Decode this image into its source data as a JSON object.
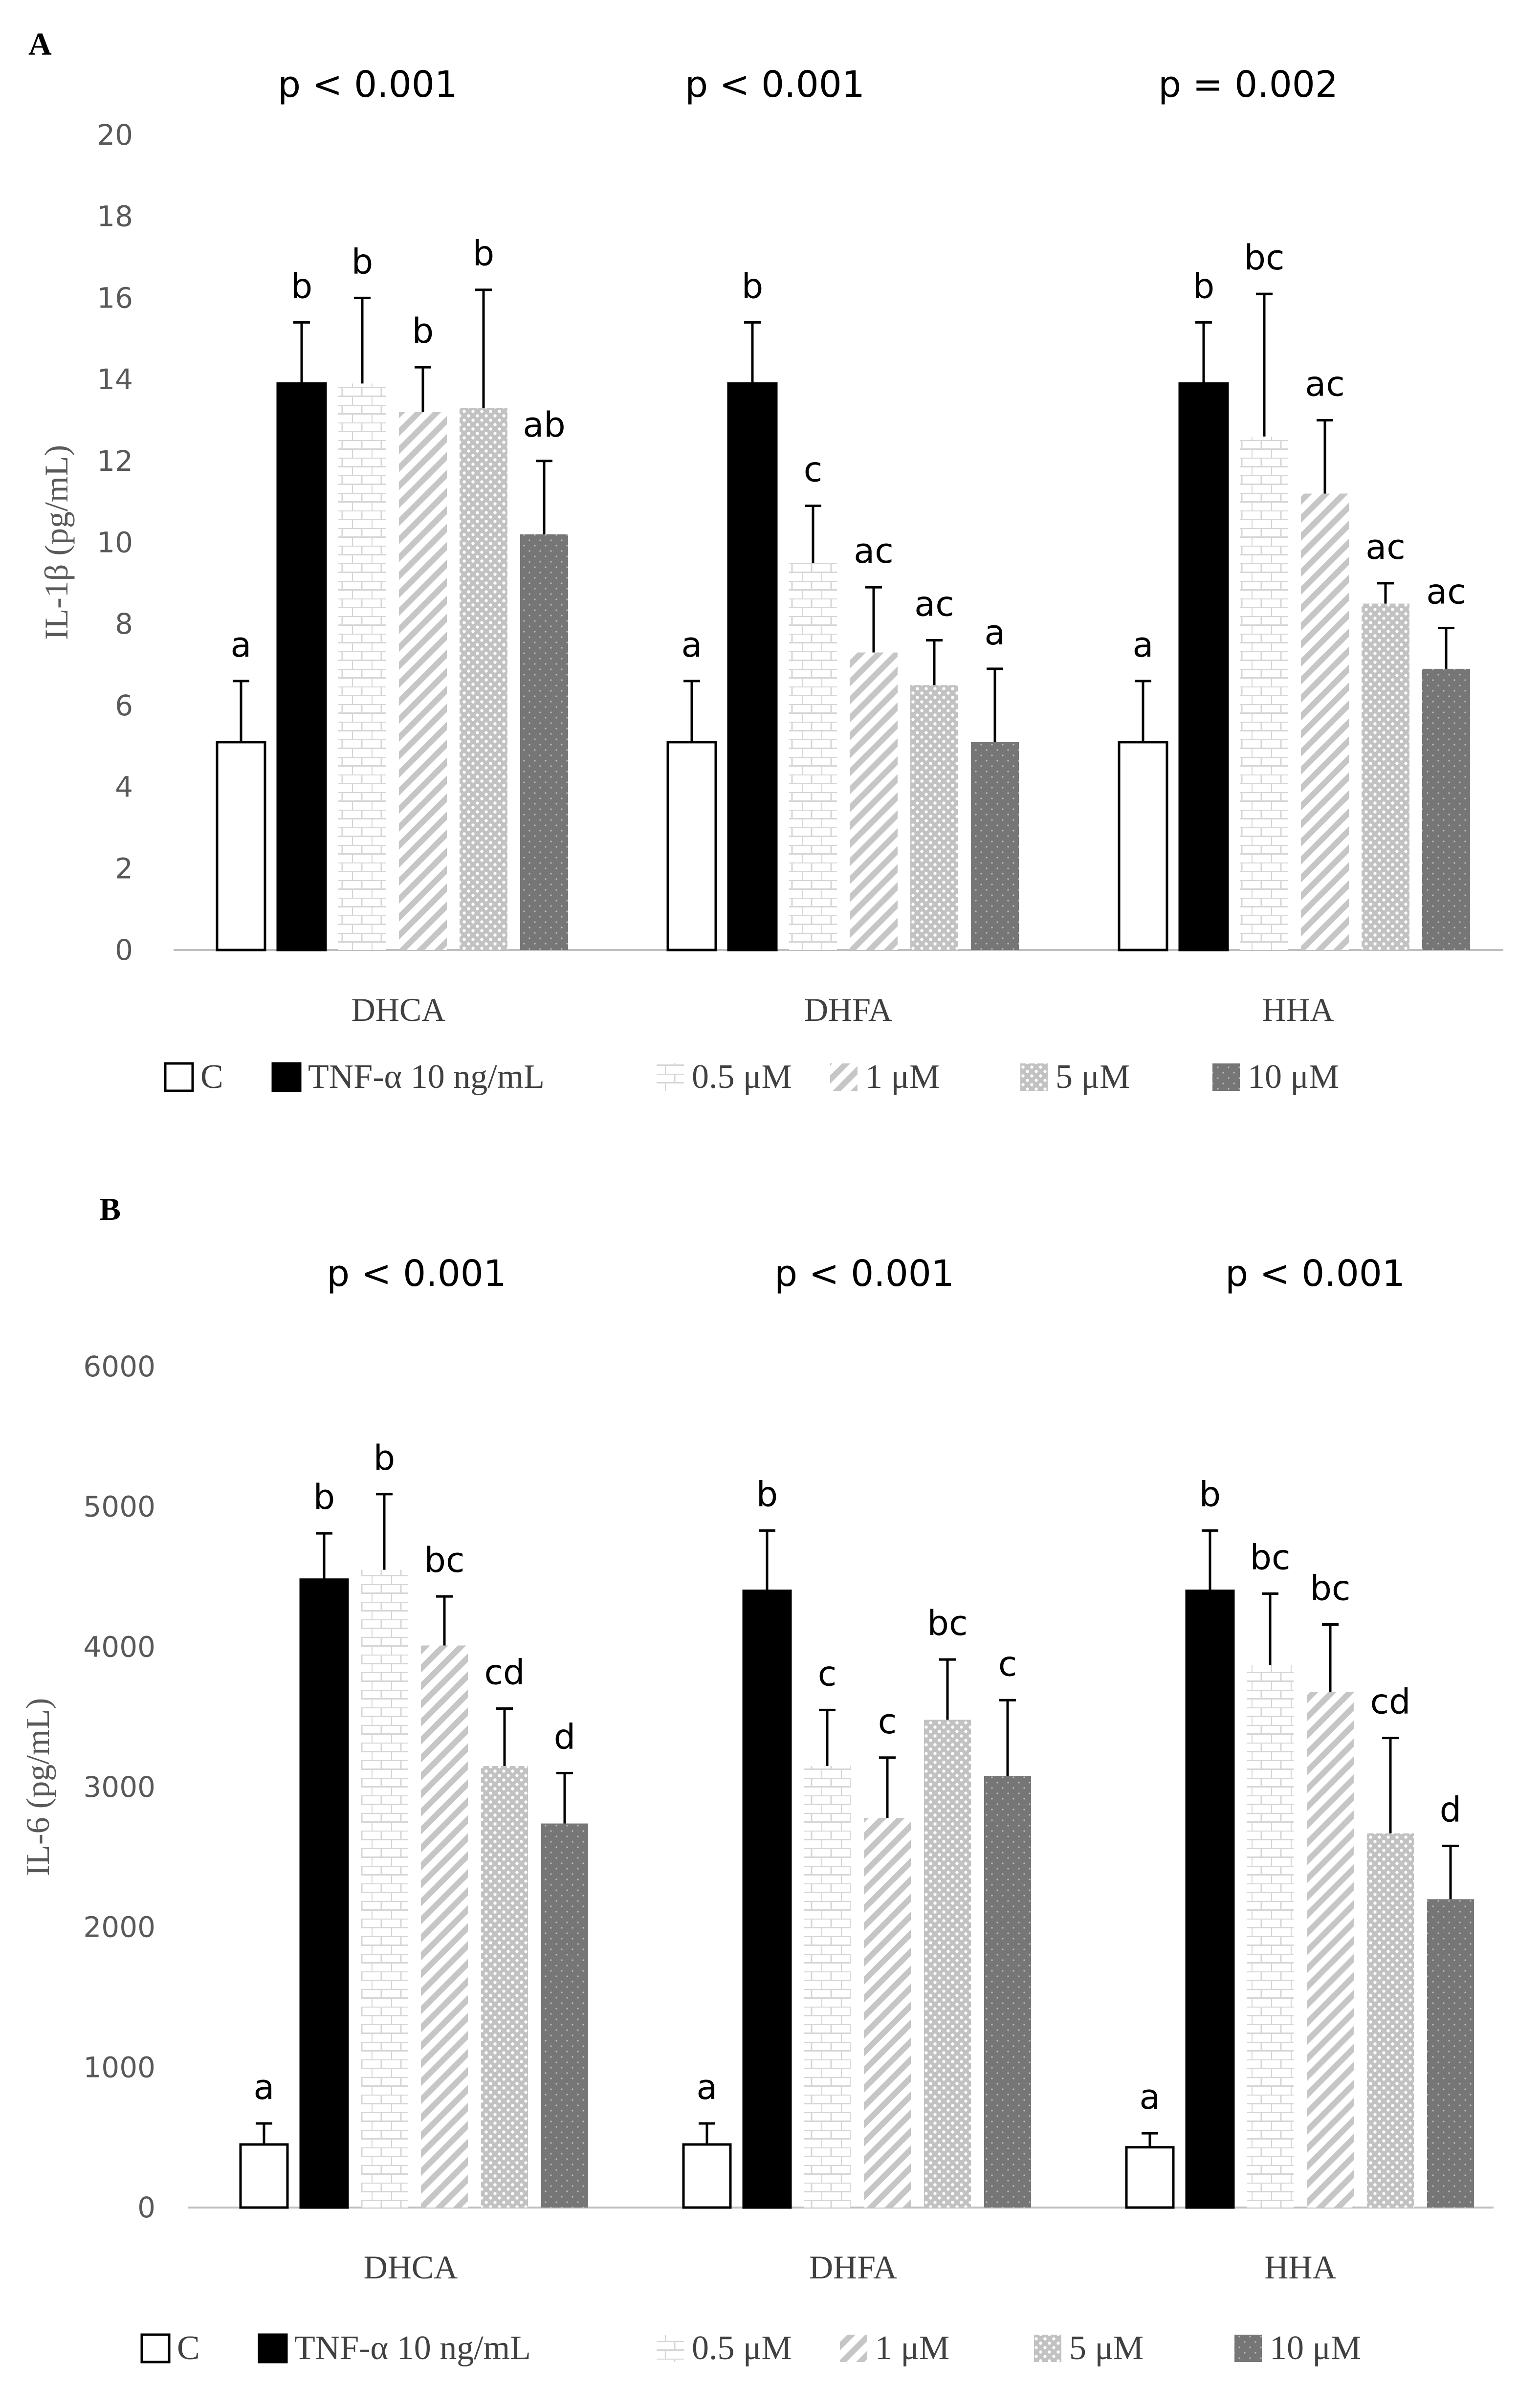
{
  "chart_data": [
    {
      "type": "bar",
      "panel_label": "A",
      "ylabel": "IL-1β (pg/mL)",
      "xlabel": "",
      "ylim": [
        0,
        20
      ],
      "yticks": [
        "0",
        "2",
        "4",
        "6",
        "8",
        "10",
        "12",
        "14",
        "16",
        "18",
        "20"
      ],
      "categories": [
        "DHCA",
        "DHFA",
        "HHA"
      ],
      "pvalues": [
        "p < 0.001",
        "p < 0.001",
        "p = 0.002"
      ],
      "series": [
        {
          "name": "C",
          "fill": "white",
          "values": [
            5.1,
            5.1,
            5.1
          ],
          "errors": [
            1.5,
            1.5,
            1.5
          ],
          "letters": [
            "a",
            "a",
            "a"
          ]
        },
        {
          "name": "TNF-α 10 ng/mL",
          "fill": "black",
          "values": [
            13.9,
            13.9,
            13.9
          ],
          "errors": [
            1.5,
            1.5,
            1.5
          ],
          "letters": [
            "b",
            "b",
            "b"
          ]
        },
        {
          "name": "0.5 μM",
          "fill": "brick",
          "values": [
            13.9,
            9.5,
            12.6
          ],
          "errors": [
            2.1,
            1.4,
            3.5
          ],
          "letters": [
            "b",
            "c",
            "bc"
          ]
        },
        {
          "name": "1 μM",
          "fill": "diagonal",
          "values": [
            13.2,
            7.3,
            11.2
          ],
          "errors": [
            1.1,
            1.6,
            1.8
          ],
          "letters": [
            "b",
            "ac",
            "ac"
          ]
        },
        {
          "name": "5 μM",
          "fill": "dots",
          "values": [
            13.3,
            6.5,
            8.5
          ],
          "errors": [
            2.9,
            1.1,
            0.5
          ],
          "letters": [
            "b",
            "ac",
            "ac"
          ]
        },
        {
          "name": "10 μM",
          "fill": "darkdots",
          "values": [
            10.2,
            5.1,
            6.9
          ],
          "errors": [
            1.8,
            1.8,
            1.0
          ],
          "letters": [
            "ab",
            "a",
            "ac"
          ]
        }
      ],
      "legend_position": "bottom"
    },
    {
      "type": "bar",
      "panel_label": "B",
      "ylabel": "IL-6 (pg/mL)",
      "xlabel": "",
      "ylim": [
        0,
        6000
      ],
      "yticks": [
        "0",
        "1000",
        "2000",
        "3000",
        "4000",
        "5000",
        "6000"
      ],
      "categories": [
        "DHCA",
        "DHFA",
        "HHA"
      ],
      "pvalues": [
        "p < 0.001",
        "p < 0.001",
        "p < 0.001"
      ],
      "series": [
        {
          "name": "C",
          "fill": "white",
          "values": [
            450,
            450,
            430
          ],
          "errors": [
            150,
            150,
            100
          ],
          "letters": [
            "a",
            "a",
            "a"
          ]
        },
        {
          "name": "TNF-α 10 ng/mL",
          "fill": "black",
          "values": [
            4480,
            4400,
            4400
          ],
          "errors": [
            330,
            430,
            430
          ],
          "letters": [
            "b",
            "b",
            "b"
          ]
        },
        {
          "name": "0.5 μM",
          "fill": "brick",
          "values": [
            4550,
            3150,
            3870
          ],
          "errors": [
            540,
            400,
            510
          ],
          "letters": [
            "b",
            "c",
            "bc"
          ]
        },
        {
          "name": "1 μM",
          "fill": "diagonal",
          "values": [
            4010,
            2780,
            3680
          ],
          "errors": [
            350,
            430,
            480
          ],
          "letters": [
            "bc",
            "c",
            "bc"
          ]
        },
        {
          "name": "5 μM",
          "fill": "dots",
          "values": [
            3150,
            3480,
            2670
          ],
          "errors": [
            410,
            430,
            680
          ],
          "letters": [
            "cd",
            "bc",
            "cd"
          ]
        },
        {
          "name": "10 μM",
          "fill": "darkdots",
          "values": [
            2740,
            3080,
            2200
          ],
          "errors": [
            360,
            540,
            380
          ],
          "letters": [
            "d",
            "c",
            "d"
          ]
        }
      ],
      "legend_position": "bottom"
    }
  ]
}
